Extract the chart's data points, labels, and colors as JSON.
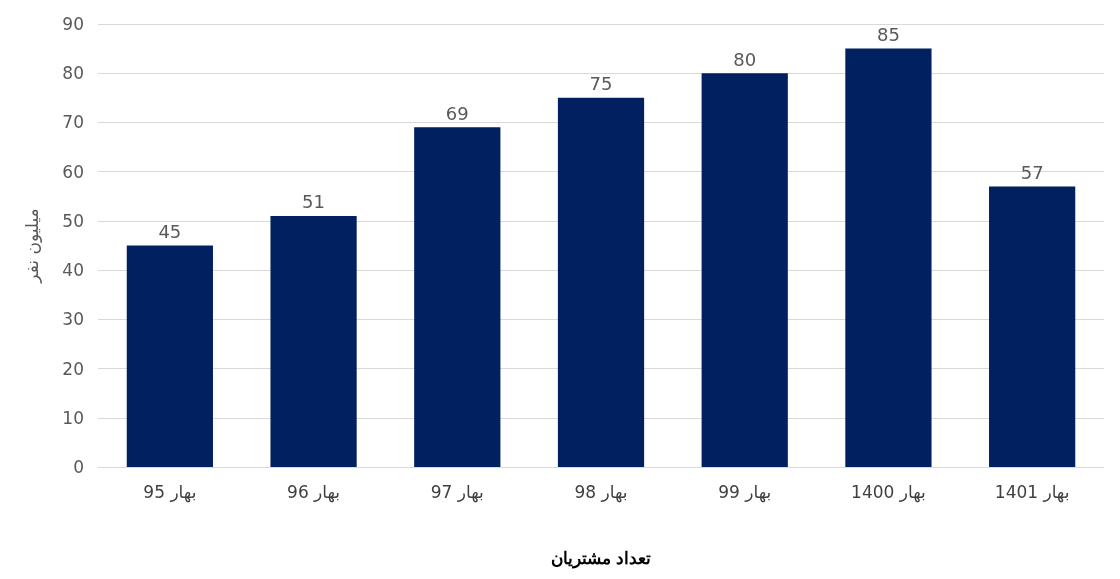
{
  "chart_data": {
    "type": "bar",
    "xlabel": "تعداد مشتریان",
    "ylabel": "میلیون نفر",
    "categories": [
      "بهار 95",
      "بهار 96",
      "بهار 97",
      "بهار 98",
      "بهار 99",
      "بهار 1400",
      "بهار 1401"
    ],
    "values": [
      45,
      51,
      69,
      75,
      80,
      85,
      57
    ],
    "color": "#002060",
    "ylim": [
      0,
      90
    ],
    "yticks": [
      0,
      10,
      20,
      30,
      40,
      50,
      60,
      70,
      80,
      90
    ],
    "grid": "y",
    "data_labels": true
  }
}
